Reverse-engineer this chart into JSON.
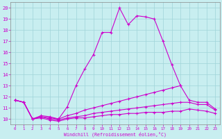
{
  "xlabel": "Windchill (Refroidissement éolien,°C)",
  "background_color": "#c8eef0",
  "grid_color": "#9fd4d8",
  "line_color": "#cc00cc",
  "xlim": [
    -0.5,
    23.5
  ],
  "ylim": [
    9.5,
    20.5
  ],
  "xticks": [
    0,
    1,
    2,
    3,
    4,
    5,
    6,
    7,
    8,
    9,
    10,
    11,
    12,
    13,
    14,
    15,
    16,
    17,
    18,
    19,
    20,
    21,
    22,
    23
  ],
  "yticks": [
    10,
    11,
    12,
    13,
    14,
    15,
    16,
    17,
    18,
    19,
    20
  ],
  "line1": {
    "x": [
      0,
      1,
      2,
      3,
      4,
      5,
      6,
      7,
      8,
      9,
      10,
      11,
      12,
      13,
      14,
      15,
      16,
      17,
      18,
      19
    ],
    "y": [
      11.7,
      11.5,
      10.0,
      10.3,
      10.2,
      10.0,
      11.1,
      13.0,
      14.5,
      15.8,
      17.8,
      17.8,
      20.0,
      18.5,
      19.3,
      19.2,
      19.0,
      17.0,
      14.9,
      13.0
    ]
  },
  "line2": {
    "x": [
      0,
      1,
      2,
      3,
      4,
      5,
      6,
      7,
      8,
      9,
      10,
      11,
      12,
      13,
      14,
      15,
      16,
      17,
      18,
      19,
      20,
      21,
      22,
      23
    ],
    "y": [
      11.7,
      11.5,
      10.0,
      10.2,
      10.1,
      10.0,
      10.3,
      10.5,
      10.8,
      11.0,
      11.2,
      11.4,
      11.6,
      11.8,
      12.0,
      12.2,
      12.4,
      12.6,
      12.8,
      13.0,
      11.7,
      11.5,
      11.5,
      10.9
    ]
  },
  "line3": {
    "x": [
      0,
      1,
      2,
      3,
      4,
      5,
      6,
      7,
      8,
      9,
      10,
      11,
      12,
      13,
      14,
      15,
      16,
      17,
      18,
      19,
      20,
      21,
      22,
      23
    ],
    "y": [
      11.7,
      11.5,
      10.0,
      10.2,
      10.0,
      9.9,
      10.1,
      10.2,
      10.3,
      10.5,
      10.6,
      10.7,
      10.8,
      10.9,
      11.0,
      11.1,
      11.2,
      11.3,
      11.4,
      11.5,
      11.5,
      11.3,
      11.3,
      10.8
    ]
  },
  "line4": {
    "x": [
      0,
      1,
      2,
      3,
      4,
      5,
      6,
      7,
      8,
      9,
      10,
      11,
      12,
      13,
      14,
      15,
      16,
      17,
      18,
      19,
      20,
      21,
      22,
      23
    ],
    "y": [
      11.7,
      11.5,
      10.0,
      10.1,
      9.9,
      9.8,
      10.0,
      10.1,
      10.1,
      10.2,
      10.3,
      10.4,
      10.4,
      10.5,
      10.5,
      10.6,
      10.6,
      10.6,
      10.7,
      10.7,
      10.9,
      10.8,
      10.7,
      10.5
    ]
  }
}
